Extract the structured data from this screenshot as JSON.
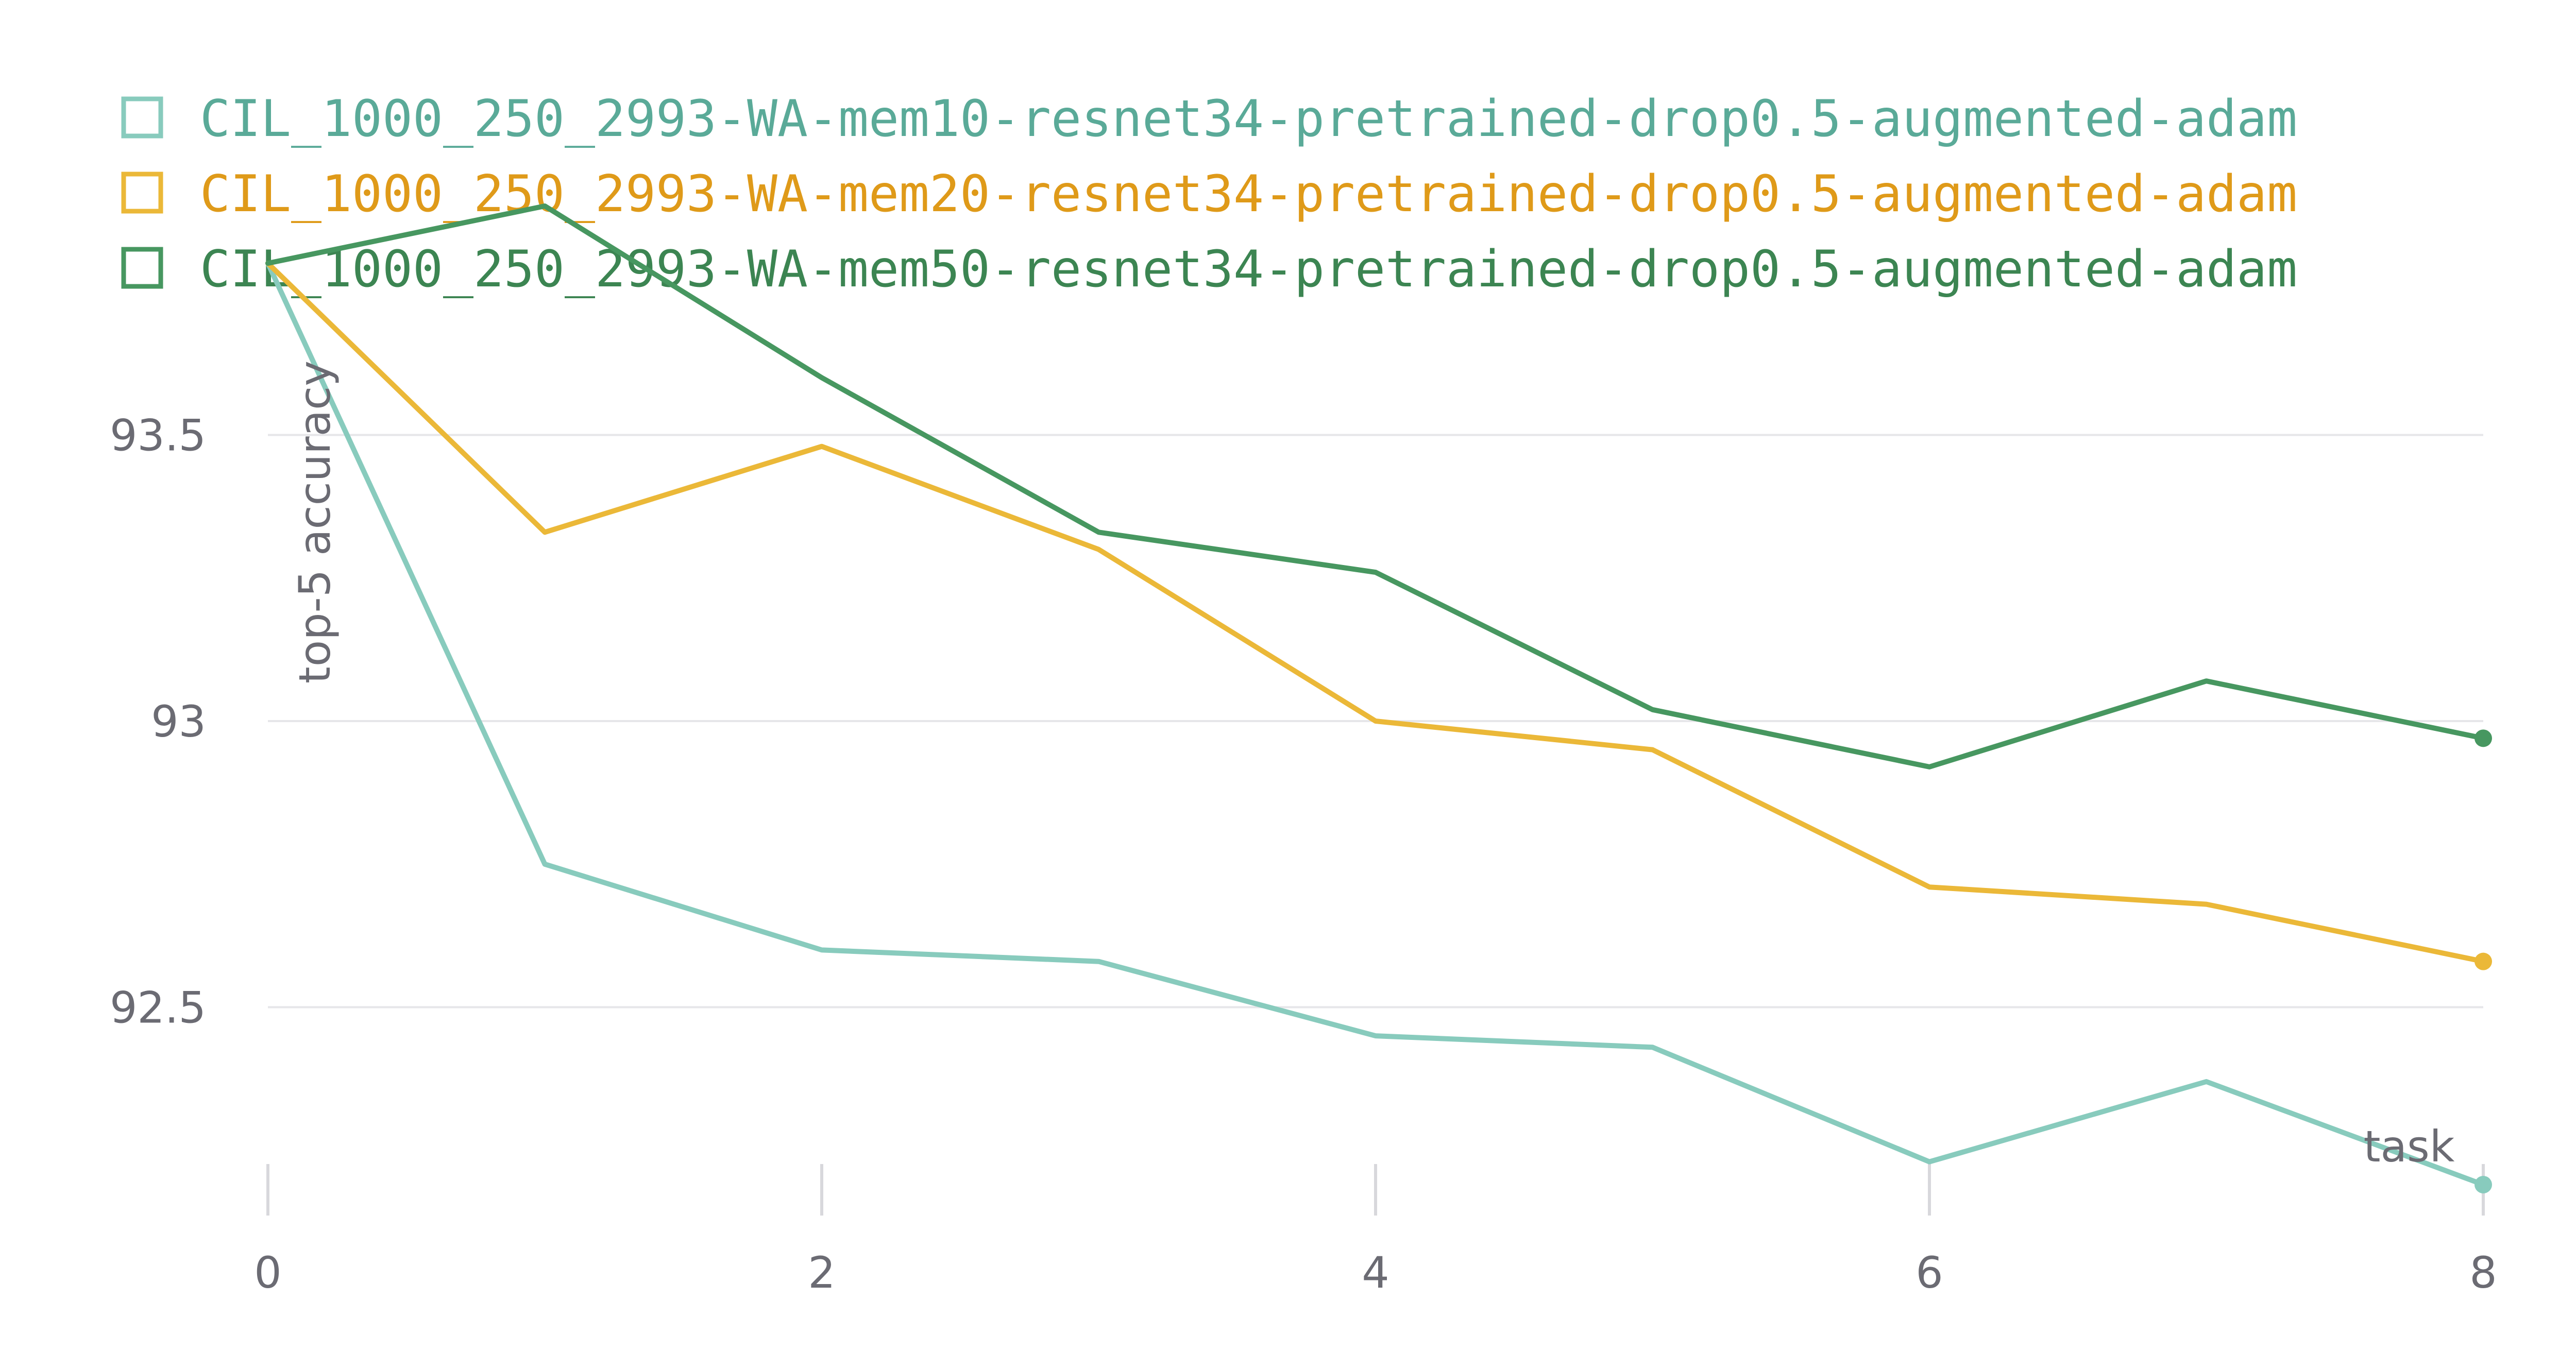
{
  "chart_data": {
    "type": "line",
    "title": "",
    "xlabel": "task",
    "ylabel": "top-5 accuracy",
    "x": [
      0,
      1,
      2,
      3,
      4,
      5,
      6,
      7,
      8
    ],
    "xlim": [
      0,
      8
    ],
    "ylim": [
      92.1,
      93.9
    ],
    "xticks": [
      0,
      2,
      4,
      6,
      8
    ],
    "yticks": [
      92.5,
      93,
      93.5
    ],
    "ytick_labels": [
      "92.5",
      "93",
      "93.5"
    ],
    "grid": "horizontal",
    "legend_position": "top",
    "series": [
      {
        "name": "CIL_1000_250_2993-WA-mem10-resnet34-pretrained-drop0.5-augmented-adam",
        "color": "#88cbbd",
        "legend_text_color": "#5aaa98",
        "values": [
          93.8,
          92.75,
          92.6,
          92.58,
          92.45,
          92.43,
          92.23,
          92.37,
          92.19
        ]
      },
      {
        "name": "CIL_1000_250_2993-WA-mem20-resnet34-pretrained-drop0.5-augmented-adam",
        "color": "#ebb838",
        "legend_text_color": "#df9a19",
        "values": [
          93.8,
          93.33,
          93.48,
          93.3,
          93.0,
          92.95,
          92.71,
          92.68,
          92.58
        ]
      },
      {
        "name": "CIL_1000_250_2993-WA-mem50-resnet34-pretrained-drop0.5-augmented-adam",
        "color": "#479760",
        "legend_text_color": "#3c8552",
        "values": [
          93.8,
          93.9,
          93.6,
          93.33,
          93.26,
          93.02,
          92.92,
          93.07,
          92.97
        ]
      }
    ]
  }
}
